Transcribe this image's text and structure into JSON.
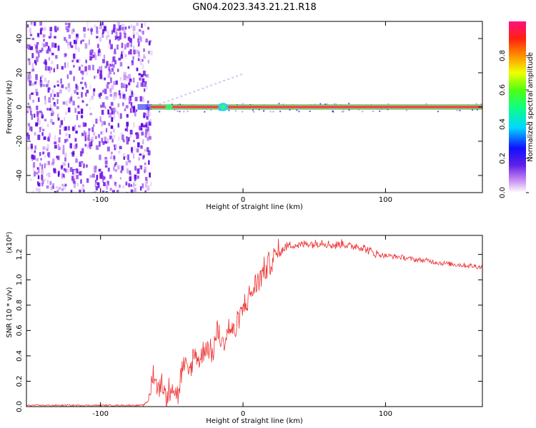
{
  "title": "GN04.2023.343.21.21.R18",
  "colors": {
    "snr_line": "#ee3030",
    "noise_scatter": "#7a1fe8",
    "band_core": "#e03060",
    "band_outer_green": "#40e030",
    "band_edge_blue": "#3030ff"
  },
  "chart_data": [
    {
      "type": "heatmap",
      "title": "",
      "xlabel": "Height of straight line (km)",
      "ylabel": "Frequency (Hz)",
      "xlim": [
        -152,
        168
      ],
      "ylim": [
        -50,
        50
      ],
      "xticks": [
        -100,
        0,
        100
      ],
      "yticks": [
        -40,
        -20,
        0,
        20,
        40
      ],
      "colorbar": {
        "label": "Normalized spectral amplitude",
        "range": [
          0.0,
          1.0
        ],
        "ticks": [
          "0.0",
          "0.2",
          "0.4",
          "0.6",
          "0.8"
        ],
        "colormap": "rainbow (white-purple-blue-cyan-green-yellow-orange-red-pink)"
      },
      "features": {
        "noise_region_x": [
          -152,
          -65
        ],
        "signal_band_x": [
          -65,
          168
        ],
        "signal_band_frequency": 0
      }
    },
    {
      "type": "line",
      "title": "",
      "xlabel": "Height of straight line (km)",
      "ylabel": "SNR (10 * v/v)",
      "multiplier_label": "(x10⁴)",
      "xlim": [
        -152,
        168
      ],
      "ylim": [
        0,
        1.35
      ],
      "xticks": [
        -100,
        0,
        100
      ],
      "yticks": [
        "0.0",
        "0.2",
        "0.4",
        "0.6",
        "0.8",
        "1.0",
        "1.2"
      ],
      "series": [
        {
          "x": [
            -152,
            -120,
            -90,
            -70,
            -66,
            -63,
            -60,
            -57,
            -54,
            -50,
            -46,
            -42,
            -38,
            -34,
            -30,
            -26,
            -22,
            -18,
            -14,
            -10,
            -6,
            -2,
            2,
            6,
            10,
            14,
            18,
            22,
            26,
            30,
            35,
            40,
            45,
            50,
            55,
            60,
            65,
            70,
            75,
            80,
            85,
            90,
            95,
            100,
            110,
            120,
            130,
            140,
            150,
            160,
            168
          ],
          "y": [
            0.01,
            0.01,
            0.01,
            0.01,
            0.05,
            0.28,
            0.12,
            0.22,
            0.05,
            0.2,
            0.08,
            0.32,
            0.26,
            0.42,
            0.36,
            0.5,
            0.4,
            0.6,
            0.48,
            0.62,
            0.58,
            0.72,
            0.82,
            0.9,
            0.98,
            1.06,
            1.12,
            1.18,
            1.22,
            1.26,
            1.28,
            1.27,
            1.29,
            1.28,
            1.3,
            1.28,
            1.27,
            1.29,
            1.26,
            1.27,
            1.25,
            1.22,
            1.2,
            1.19,
            1.18,
            1.16,
            1.15,
            1.13,
            1.12,
            1.11,
            1.1
          ]
        }
      ]
    }
  ]
}
